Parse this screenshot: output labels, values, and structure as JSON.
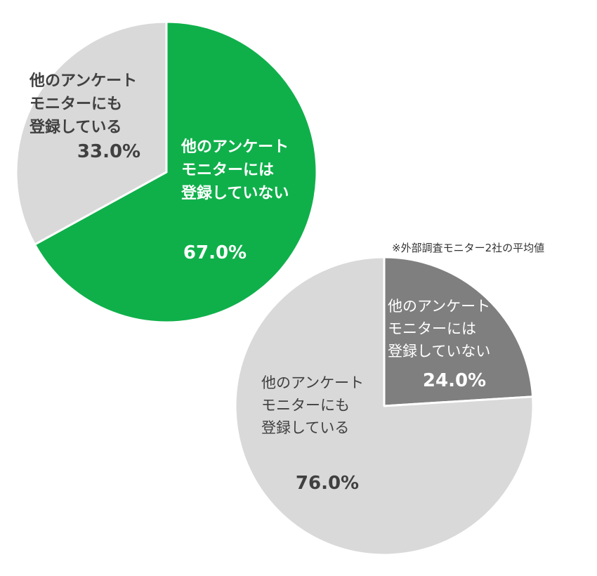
{
  "note": "※外部調査モニター2社の平均値",
  "chart_data": [
    {
      "type": "pie",
      "categories": [
        "他のアンケートモニターには登録していない",
        "他のアンケートモニターにも登録している"
      ],
      "values": [
        67.0,
        33.0
      ],
      "colors": [
        "#0fb04a",
        "#d9d9d9"
      ],
      "start_angle_deg": 0,
      "direction": "clockwise",
      "slices": [
        {
          "label_lines": [
            "他のアンケート",
            "モニターには",
            "登録していない"
          ],
          "value_label": "67.0%",
          "text_color": "#ffffff",
          "label_weight": "bold"
        },
        {
          "label_lines": [
            "他のアンケート",
            "モニターにも",
            "登録している"
          ],
          "value_label": "33.0%",
          "text_color": "#404040",
          "label_weight": "bold"
        }
      ]
    },
    {
      "type": "pie",
      "categories": [
        "他のアンケートモニターには登録していない",
        "他のアンケートモニターにも登録している"
      ],
      "values": [
        24.0,
        76.0
      ],
      "colors": [
        "#7f7f7f",
        "#d9d9d9"
      ],
      "start_angle_deg": 0,
      "direction": "clockwise",
      "slices": [
        {
          "label_lines": [
            "他のアンケート",
            "モニターには",
            "登録していない"
          ],
          "value_label": "24.0%",
          "text_color": "#ffffff",
          "label_weight": "normal"
        },
        {
          "label_lines": [
            "他のアンケート",
            "モニターにも",
            "登録している"
          ],
          "value_label": "76.0%",
          "text_color": "#404040",
          "label_weight": "normal"
        }
      ]
    }
  ]
}
